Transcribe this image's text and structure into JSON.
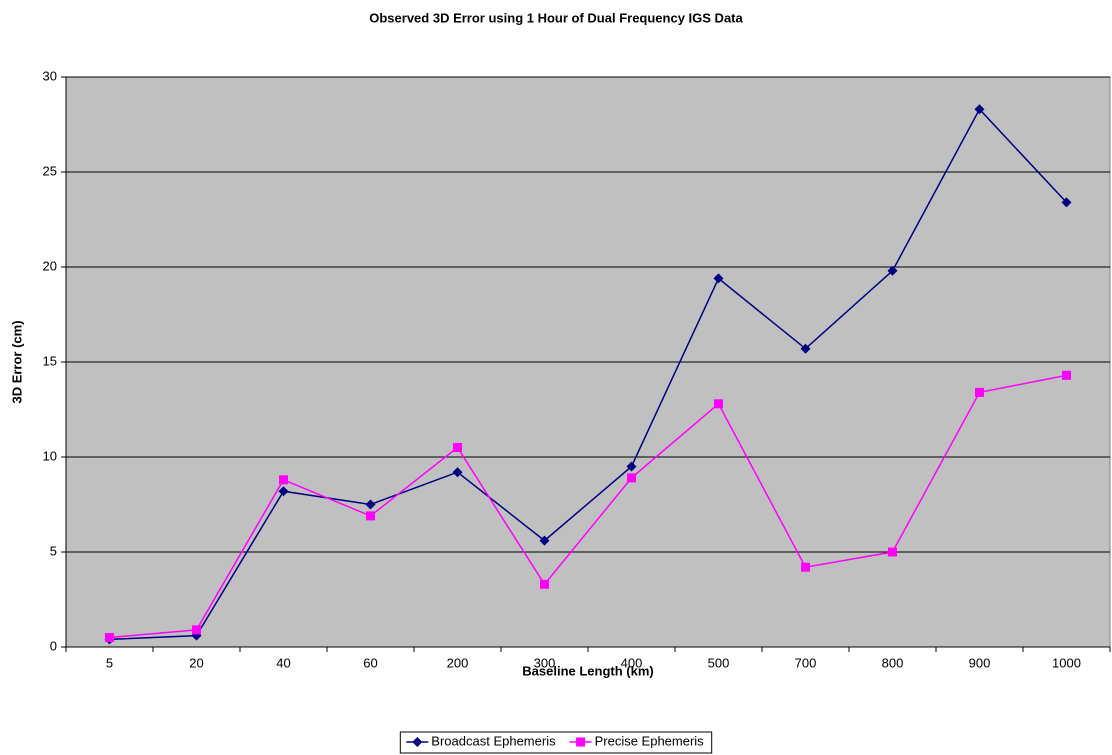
{
  "chart_data": {
    "type": "line",
    "title": "Observed 3D Error using 1 Hour of Dual Frequency IGS Data",
    "xlabel": "Baseline Length (km)",
    "ylabel": "3D Error (cm)",
    "categories": [
      "5",
      "20",
      "40",
      "60",
      "200",
      "300",
      "400",
      "500",
      "700",
      "800",
      "900",
      "1000"
    ],
    "series": [
      {
        "name": "Broadcast Ephemeris",
        "color": "#000080",
        "marker": "diamond",
        "values": [
          0.4,
          0.6,
          8.2,
          7.5,
          9.2,
          5.6,
          9.5,
          19.4,
          15.7,
          19.8,
          28.3,
          23.4
        ]
      },
      {
        "name": "Precise Ephemeris",
        "color": "#ff00ff",
        "marker": "square",
        "values": [
          0.5,
          0.9,
          8.8,
          6.9,
          10.5,
          3.3,
          8.9,
          12.8,
          4.2,
          5.0,
          13.4,
          14.3
        ]
      }
    ],
    "ylim": [
      0,
      30
    ],
    "yticks": [
      0,
      5,
      10,
      15,
      20,
      25,
      30
    ],
    "grid": true,
    "plot_background": "#c0c0c0",
    "legend": "bottom"
  }
}
